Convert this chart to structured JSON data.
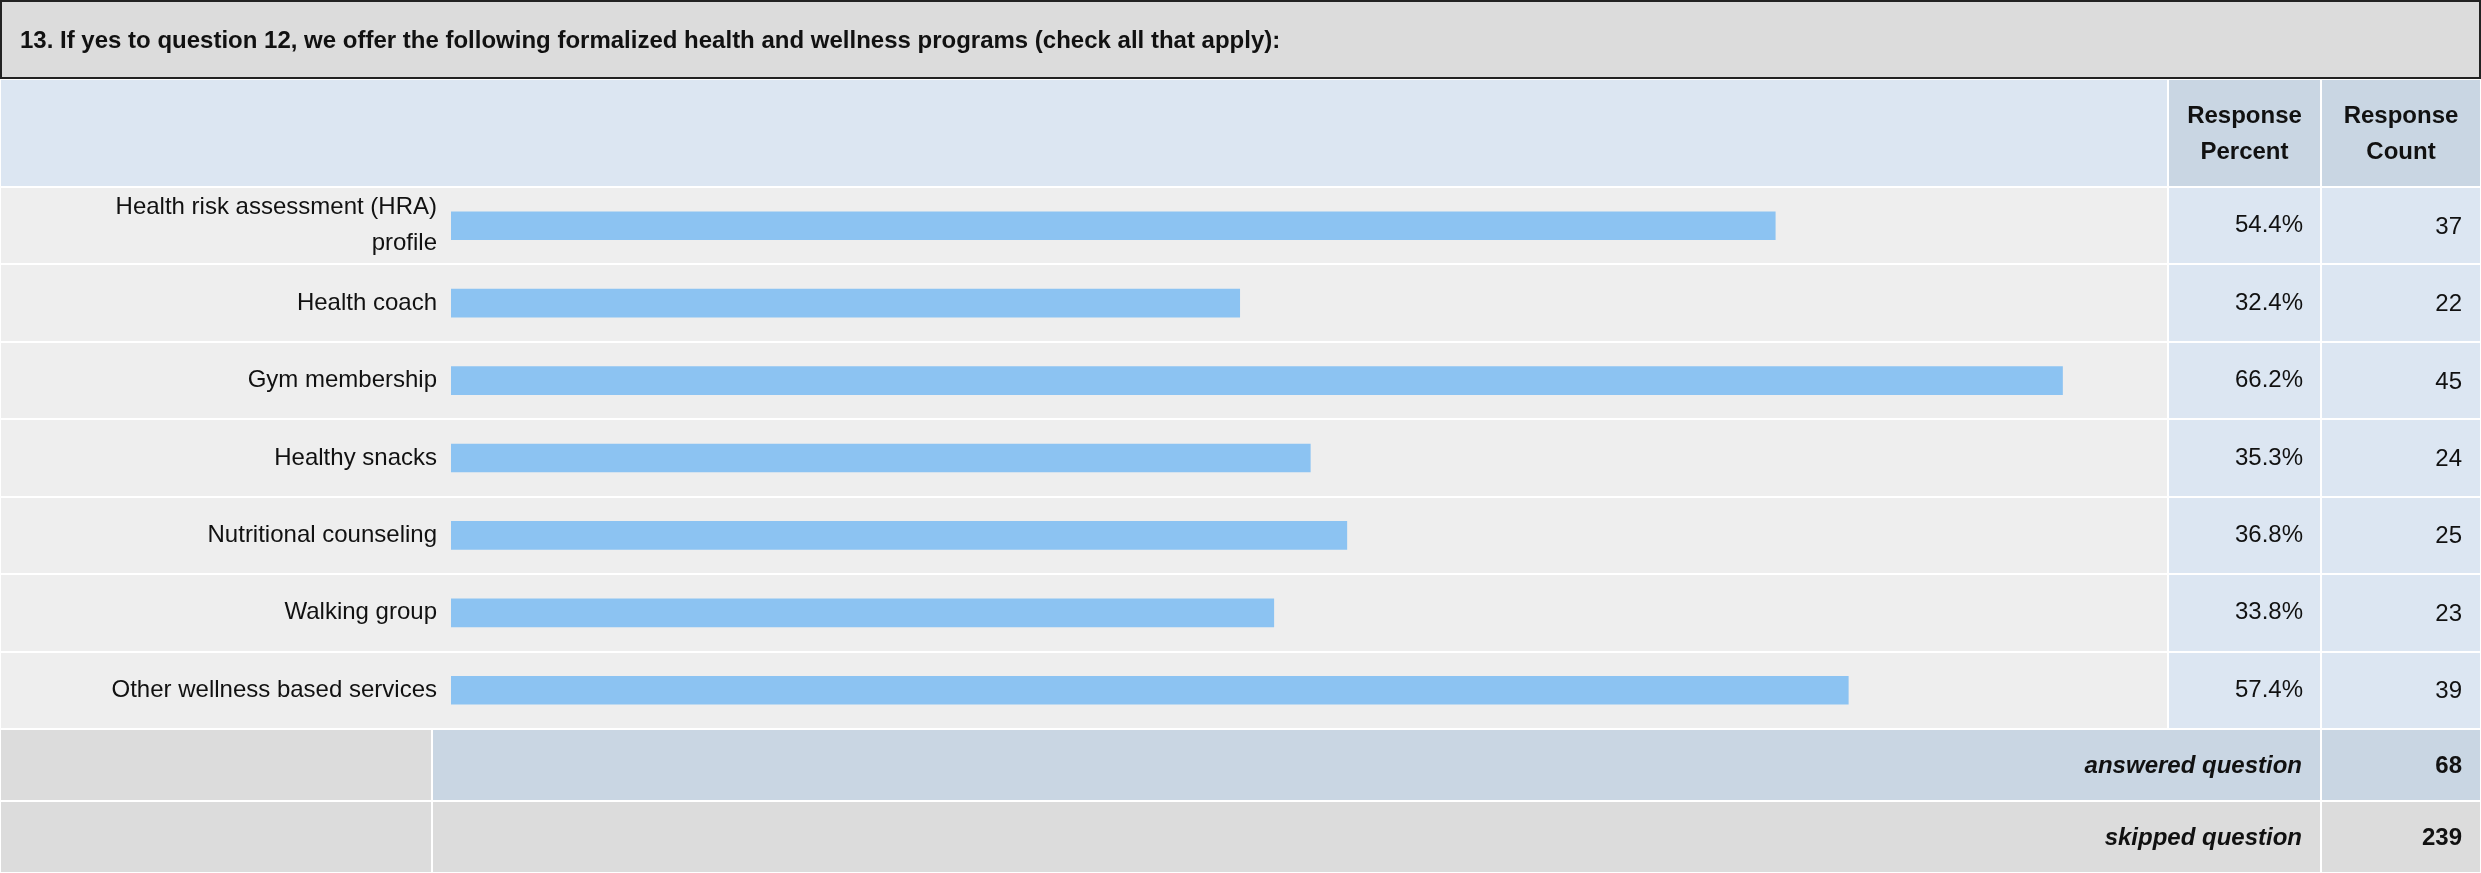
{
  "chart_data": {
    "type": "bar",
    "orientation": "horizontal",
    "title": "13. If yes to question 12, we offer the following formalized health and wellness programs (check all that apply):",
    "categories": [
      "Health risk assessment (HRA) profile",
      "Health coach",
      "Gym membership",
      "Healthy snacks",
      "Nutritional counseling",
      "Walking group",
      "Other wellness based services"
    ],
    "values": [
      54.4,
      32.4,
      66.2,
      35.3,
      36.8,
      33.8,
      57.4
    ],
    "value_labels": [
      "54.4%",
      "32.4%",
      "66.2%",
      "35.3%",
      "36.8%",
      "33.8%",
      "57.4%"
    ],
    "data_labels": true,
    "color": "#8cc3f2",
    "legend": false,
    "annotations": [
      "Response Percent",
      "Response Count",
      "37",
      "22",
      "45",
      "24",
      "25",
      "23",
      "39",
      "answered question",
      "68",
      "skipped question",
      "239"
    ]
  }
}
